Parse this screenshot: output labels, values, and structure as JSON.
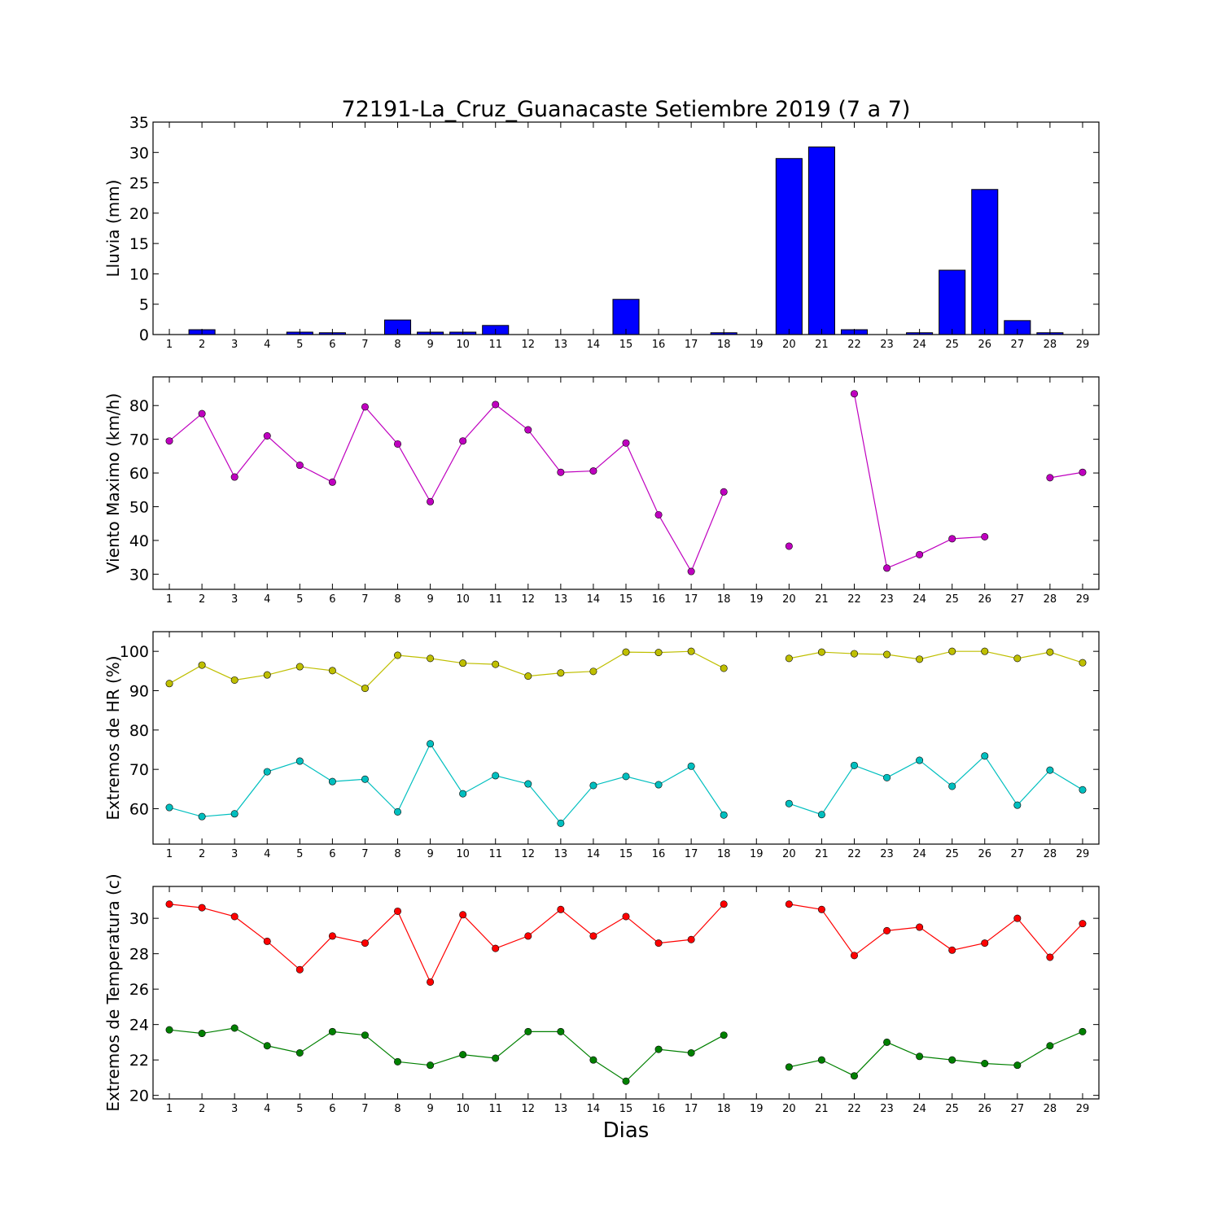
{
  "title": "72191-La_Cruz_Guanacaste Setiembre 2019  (7 a 7)",
  "xlabel": "Dias",
  "days": [
    1,
    2,
    3,
    4,
    5,
    6,
    7,
    8,
    9,
    10,
    11,
    12,
    13,
    14,
    15,
    16,
    17,
    18,
    19,
    20,
    21,
    22,
    23,
    24,
    25,
    26,
    27,
    28,
    29
  ],
  "chart_data": [
    {
      "type": "bar",
      "ylabel": "Lluvia (mm)",
      "ylim": [
        0,
        35
      ],
      "yticks": [
        0,
        5,
        10,
        15,
        20,
        25,
        30,
        35
      ],
      "grid": false,
      "series": [
        {
          "color": "#0000ff",
          "values": [
            0,
            0.8,
            0,
            0,
            0.4,
            0.3,
            0,
            2.4,
            0.4,
            0.4,
            1.5,
            0,
            0,
            0,
            5.8,
            0,
            0,
            0.3,
            0,
            29.0,
            30.9,
            0.8,
            0,
            0.3,
            10.6,
            23.9,
            2.3,
            0.3,
            0
          ]
        }
      ]
    },
    {
      "type": "line",
      "ylabel": "Viento Maximo (km/h)",
      "ylim": [
        25.5,
        88.5
      ],
      "yticks": [
        30,
        40,
        50,
        60,
        70,
        80
      ],
      "grid": false,
      "series": [
        {
          "color": "#bf00bf",
          "values": [
            69.5,
            77.6,
            58.8,
            71.0,
            62.3,
            57.3,
            79.6,
            68.6,
            51.5,
            69.5,
            80.3,
            72.8,
            60.2,
            60.6,
            68.9,
            47.6,
            30.8,
            54.4,
            null,
            38.3,
            null,
            83.5,
            31.8,
            35.8,
            40.5,
            41.1,
            null,
            58.6,
            60.2
          ]
        }
      ]
    },
    {
      "type": "line",
      "ylabel": "Extremos de HR (%)",
      "ylim": [
        51,
        105
      ],
      "yticks": [
        60,
        70,
        80,
        90,
        100
      ],
      "grid": false,
      "series": [
        {
          "color": "#bfbf00",
          "values": [
            91.8,
            96.5,
            92.7,
            94.0,
            96.1,
            95.1,
            90.6,
            99.0,
            98.2,
            97.0,
            96.7,
            93.7,
            94.5,
            94.9,
            99.8,
            99.7,
            100.0,
            95.7,
            null,
            98.2,
            99.8,
            99.4,
            99.2,
            98.0,
            100.0,
            100.0,
            98.2,
            99.8,
            97.1
          ]
        },
        {
          "color": "#00bfbf",
          "values": [
            60.3,
            58.0,
            58.7,
            69.4,
            72.1,
            66.9,
            67.5,
            59.2,
            76.5,
            63.8,
            68.4,
            66.3,
            56.3,
            65.9,
            68.2,
            66.1,
            70.8,
            58.4,
            null,
            61.3,
            58.5,
            71.0,
            67.9,
            72.3,
            65.7,
            73.4,
            60.9,
            69.8,
            64.8
          ]
        }
      ]
    },
    {
      "type": "line",
      "ylabel": "Extremos de Temperatura (c)",
      "ylim": [
        19.8,
        31.8
      ],
      "yticks": [
        20,
        22,
        24,
        26,
        28,
        30
      ],
      "grid": false,
      "series": [
        {
          "color": "#ff0000",
          "values": [
            30.8,
            30.6,
            30.1,
            28.7,
            27.1,
            29.0,
            28.6,
            30.4,
            26.4,
            30.2,
            28.3,
            29.0,
            30.5,
            29.0,
            30.1,
            28.6,
            28.8,
            30.8,
            null,
            30.8,
            30.5,
            27.9,
            29.3,
            29.5,
            28.2,
            28.6,
            30.0,
            27.8,
            29.7
          ]
        },
        {
          "color": "#008000",
          "values": [
            23.7,
            23.5,
            23.8,
            22.8,
            22.4,
            23.6,
            23.4,
            21.9,
            21.7,
            22.3,
            22.1,
            23.6,
            23.6,
            22.0,
            20.8,
            22.6,
            22.4,
            23.4,
            null,
            21.6,
            22.0,
            21.1,
            23.0,
            22.2,
            22.0,
            21.8,
            21.7,
            22.8,
            23.6
          ]
        }
      ]
    }
  ]
}
